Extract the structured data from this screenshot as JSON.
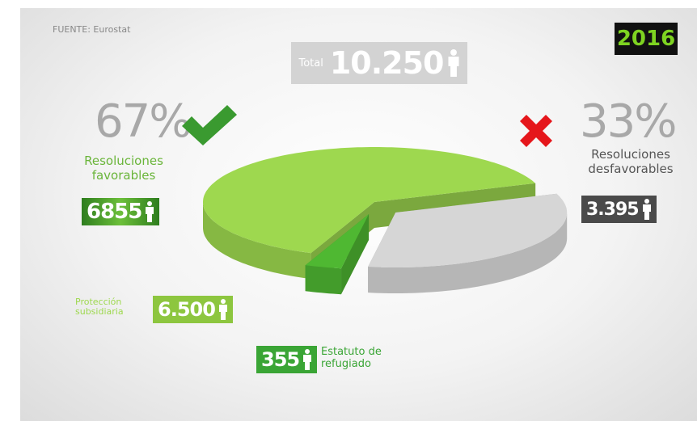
{
  "chart_data": {
    "type": "pie",
    "source": "FUENTE: Eurostat",
    "year": "2016",
    "total_title": "Total",
    "total": 10250,
    "total_label": "10.250",
    "categories": [
      "Protección subsidiaria",
      "Estatuto de refugiado",
      "Resoluciones desfavorables"
    ],
    "values": [
      6500,
      355,
      3395
    ],
    "value_labels": [
      "6.500",
      "355",
      "3.395"
    ],
    "colors": [
      "#9ed84f",
      "#4fb832",
      "#d6d6d6"
    ],
    "favorable": {
      "name": "Resoluciones favorables",
      "percent": 67,
      "percent_label": "67%",
      "count": 6855
    },
    "unfavorable_percent": 33,
    "unfavorable_percent_label": "33%"
  }
}
